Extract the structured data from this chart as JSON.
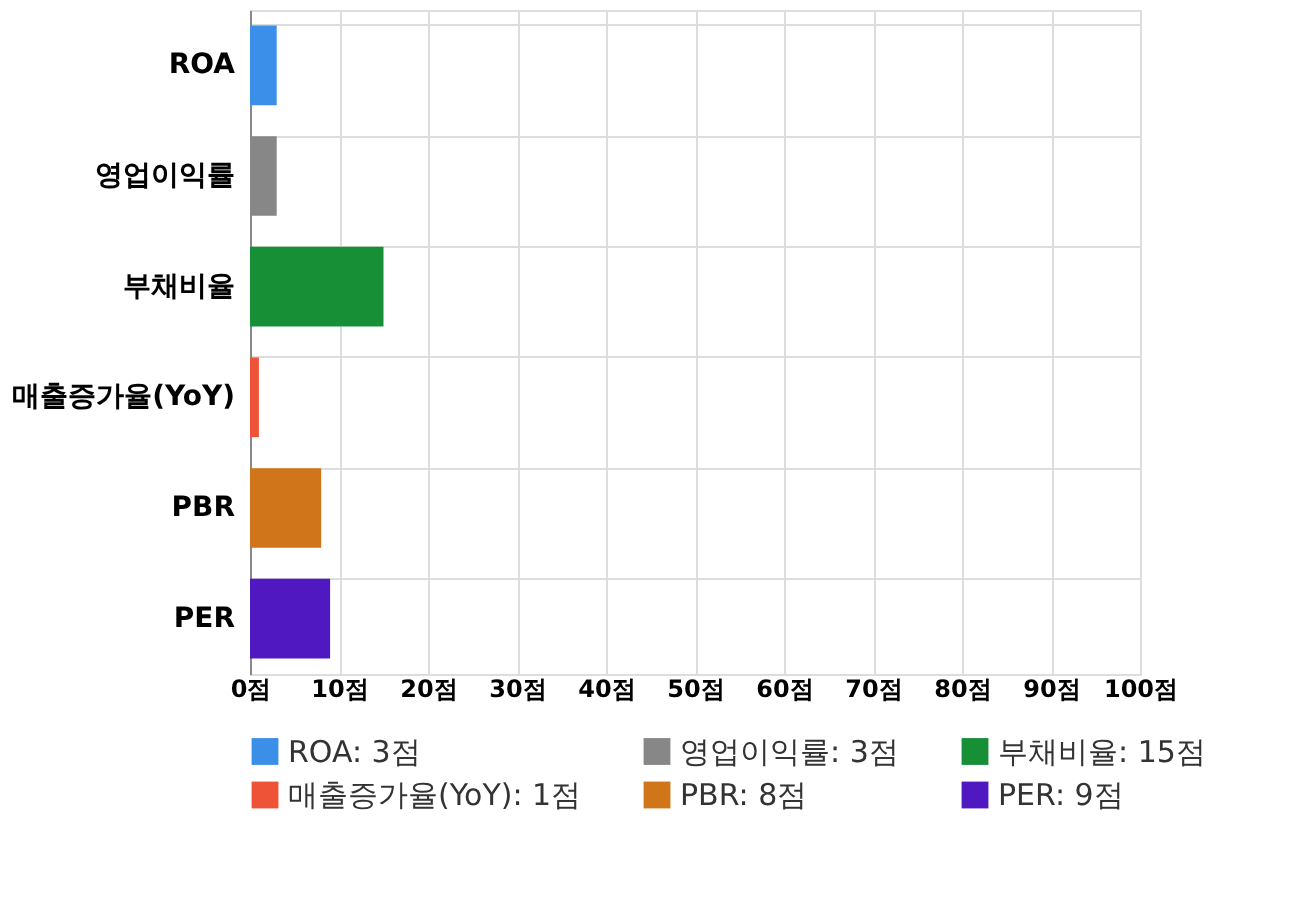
{
  "chart_data": {
    "type": "bar",
    "orientation": "horizontal",
    "categories": [
      "ROA",
      "영업이익률",
      "부채비율",
      "매출증가율(YoY)",
      "PBR",
      "PER"
    ],
    "series": [
      {
        "name": "ROA: 3점",
        "color": "#3b8fe8",
        "values": [
          3,
          null,
          null,
          null,
          null,
          null
        ]
      },
      {
        "name": "영업이익률: 3점",
        "color": "#878787",
        "values": [
          null,
          3,
          null,
          null,
          null,
          null
        ]
      },
      {
        "name": "부채비율: 15점",
        "color": "#178f37",
        "values": [
          null,
          null,
          15,
          null,
          null,
          null
        ]
      },
      {
        "name": "매출증가율(YoY): 1점",
        "color": "#ee5337",
        "values": [
          null,
          null,
          null,
          1,
          null,
          null
        ]
      },
      {
        "name": "PBR: 8점",
        "color": "#d07519",
        "values": [
          null,
          null,
          null,
          null,
          8,
          null
        ]
      },
      {
        "name": "PER: 9점",
        "color": "#5018c0",
        "values": [
          null,
          null,
          null,
          null,
          null,
          9
        ]
      }
    ],
    "xlim": [
      0,
      100
    ],
    "xticks": [
      {
        "value": 0,
        "label": "0점"
      },
      {
        "value": 10,
        "label": "10점"
      },
      {
        "value": 20,
        "label": "20점"
      },
      {
        "value": 30,
        "label": "30점"
      },
      {
        "value": 40,
        "label": "40점"
      },
      {
        "value": 50,
        "label": "50점"
      },
      {
        "value": 60,
        "label": "60점"
      },
      {
        "value": 70,
        "label": "70점"
      },
      {
        "value": 80,
        "label": "80점"
      },
      {
        "value": 90,
        "label": "90점"
      },
      {
        "value": 100,
        "label": "100점"
      }
    ],
    "grid": true,
    "legend": "bottom"
  }
}
